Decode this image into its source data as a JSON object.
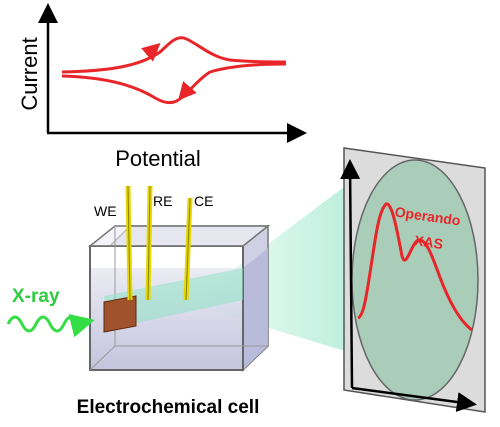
{
  "cv_plot": {
    "ylabel": "Current",
    "xlabel": "Potential"
  },
  "cell": {
    "electrodes": [
      "WE",
      "RE",
      "CE"
    ],
    "caption": "Electrochemical cell"
  },
  "beam": {
    "label": "X-ray"
  },
  "detector": {
    "label_line1": "Operando",
    "label_line2": "XAS"
  },
  "colors": {
    "cv_curve": "#e8262a",
    "xray_label": "#2ecc40",
    "xray_wave": "#33dd44",
    "electrode": "#e6d800",
    "working_electrode_plate": "#a0522d",
    "beam_cone": "#9fe8cf",
    "screen_circle": "#a9cdb8",
    "spectrum": "#e8262a"
  }
}
